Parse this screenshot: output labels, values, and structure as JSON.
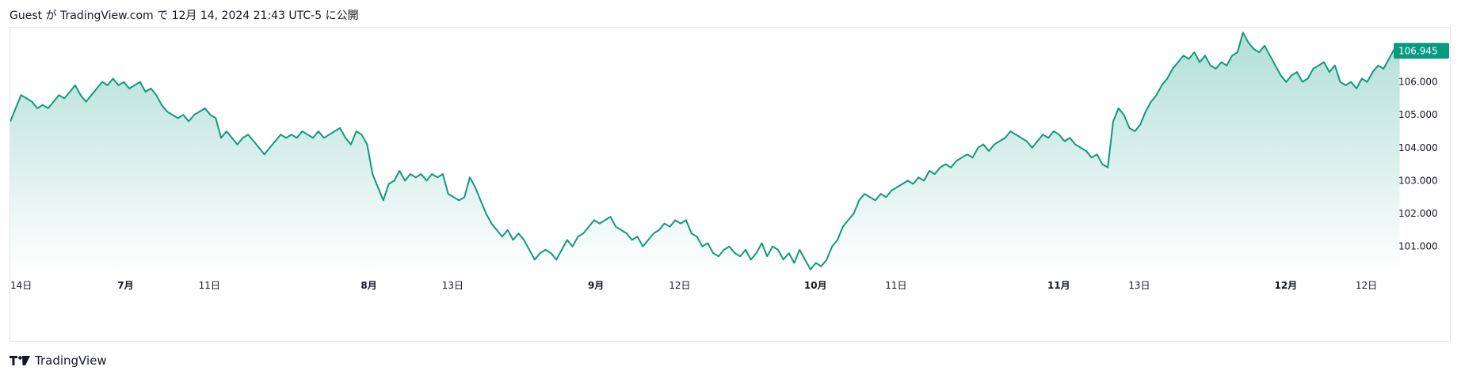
{
  "header": {
    "text": "Guest が TradingView.com で 12月 14, 2024 21:43 UTC-5 に公開"
  },
  "footer": {
    "brand": "TradingView",
    "logo_icon": "tradingview-logo-icon"
  },
  "colors": {
    "line": "#0e9a7d",
    "fill_top": "#0e9a7d",
    "last_price_bg": "#089981",
    "axis_text": "#131722",
    "border": "#e0e3eb"
  },
  "chart_data": {
    "type": "area",
    "last_value": 106.945,
    "last_value_label": "106.945",
    "ylim": [
      100.2,
      107.6
    ],
    "y_ticks": [
      {
        "value": 106.0,
        "label": "106.000"
      },
      {
        "value": 105.0,
        "label": "105.000"
      },
      {
        "value": 104.0,
        "label": "104.000"
      },
      {
        "value": 103.0,
        "label": "103.000"
      },
      {
        "value": 102.0,
        "label": "102.000"
      },
      {
        "value": 101.0,
        "label": "101.000"
      }
    ],
    "x_ticks": [
      {
        "label": "14日",
        "index": 0,
        "bold": false
      },
      {
        "label": "7月",
        "index": 21,
        "bold": true
      },
      {
        "label": "11日",
        "index": 36,
        "bold": false
      },
      {
        "label": "8月",
        "index": 66,
        "bold": true
      },
      {
        "label": "13日",
        "index": 81,
        "bold": false
      },
      {
        "label": "9月",
        "index": 108,
        "bold": true
      },
      {
        "label": "12日",
        "index": 123,
        "bold": false
      },
      {
        "label": "10月",
        "index": 148,
        "bold": true
      },
      {
        "label": "11日",
        "index": 163,
        "bold": false
      },
      {
        "label": "11月",
        "index": 193,
        "bold": true
      },
      {
        "label": "13日",
        "index": 208,
        "bold": false
      },
      {
        "label": "12月",
        "index": 235,
        "bold": true
      },
      {
        "label": "12日",
        "index": 250,
        "bold": false
      }
    ],
    "n_slots": 256,
    "values": [
      104.8,
      105.2,
      105.6,
      105.5,
      105.4,
      105.2,
      105.3,
      105.2,
      105.4,
      105.6,
      105.5,
      105.7,
      105.9,
      105.6,
      105.4,
      105.6,
      105.8,
      106.0,
      105.9,
      106.1,
      105.9,
      106.0,
      105.8,
      105.9,
      106.0,
      105.7,
      105.8,
      105.6,
      105.3,
      105.1,
      105.0,
      104.9,
      105.0,
      104.8,
      105.0,
      105.1,
      105.2,
      105.0,
      104.9,
      104.3,
      104.5,
      104.3,
      104.1,
      104.3,
      104.4,
      104.2,
      104.0,
      103.8,
      104.0,
      104.2,
      104.4,
      104.3,
      104.4,
      104.3,
      104.5,
      104.4,
      104.3,
      104.5,
      104.3,
      104.4,
      104.5,
      104.6,
      104.3,
      104.1,
      104.5,
      104.4,
      104.1,
      103.2,
      102.8,
      102.4,
      102.9,
      103.0,
      103.3,
      103.0,
      103.2,
      103.1,
      103.2,
      103.0,
      103.2,
      103.1,
      103.2,
      102.6,
      102.5,
      102.4,
      102.5,
      103.1,
      102.8,
      102.4,
      102.0,
      101.7,
      101.5,
      101.3,
      101.5,
      101.2,
      101.4,
      101.2,
      100.9,
      100.6,
      100.8,
      100.9,
      100.8,
      100.6,
      100.9,
      101.2,
      101.0,
      101.3,
      101.4,
      101.6,
      101.8,
      101.7,
      101.8,
      101.9,
      101.6,
      101.5,
      101.4,
      101.2,
      101.3,
      101.0,
      101.2,
      101.4,
      101.5,
      101.7,
      101.6,
      101.8,
      101.7,
      101.8,
      101.4,
      101.3,
      101.0,
      101.1,
      100.8,
      100.7,
      100.9,
      101.0,
      100.8,
      100.7,
      100.9,
      100.6,
      100.8,
      101.1,
      100.7,
      101.0,
      100.9,
      100.6,
      100.8,
      100.5,
      100.9,
      100.6,
      100.3,
      100.5,
      100.4,
      100.6,
      101.0,
      101.2,
      101.6,
      101.8,
      102.0,
      102.4,
      102.6,
      102.5,
      102.4,
      102.6,
      102.5,
      102.7,
      102.8,
      102.9,
      103.0,
      102.9,
      103.1,
      103.0,
      103.3,
      103.2,
      103.4,
      103.5,
      103.4,
      103.6,
      103.7,
      103.8,
      103.7,
      104.0,
      104.1,
      103.9,
      104.1,
      104.2,
      104.3,
      104.5,
      104.4,
      104.3,
      104.2,
      104.0,
      104.2,
      104.4,
      104.3,
      104.5,
      104.4,
      104.2,
      104.3,
      104.1,
      104.0,
      103.9,
      103.7,
      103.8,
      103.5,
      103.4,
      104.8,
      105.2,
      105.0,
      104.6,
      104.5,
      104.7,
      105.1,
      105.4,
      105.6,
      105.9,
      106.1,
      106.4,
      106.6,
      106.8,
      106.7,
      106.9,
      106.6,
      106.8,
      106.5,
      106.4,
      106.6,
      106.5,
      106.8,
      106.9,
      107.5,
      107.2,
      107.0,
      106.9,
      107.1,
      106.8,
      106.5,
      106.2,
      106.0,
      106.2,
      106.3,
      106.0,
      106.1,
      106.4,
      106.5,
      106.6,
      106.3,
      106.5,
      106.0,
      105.9,
      106.0,
      105.8,
      106.1,
      106.0,
      106.3,
      106.5,
      106.4,
      106.7,
      107.0,
      106.945
    ]
  }
}
